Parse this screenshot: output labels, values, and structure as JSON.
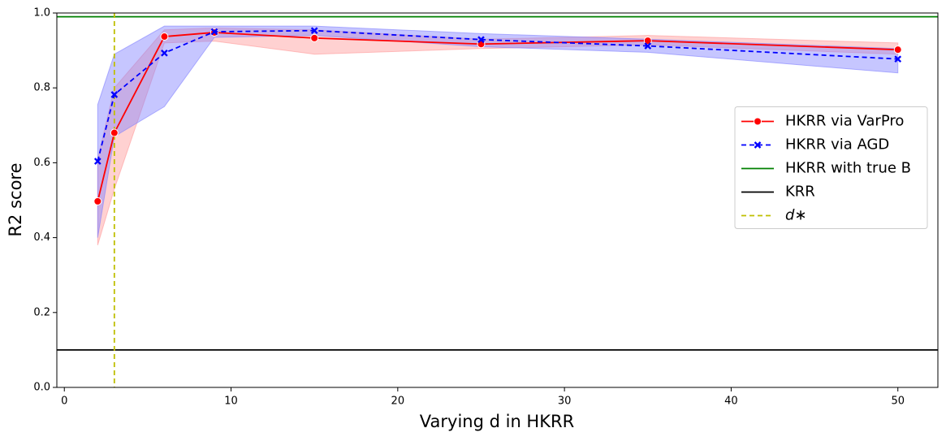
{
  "chart_data": {
    "type": "line",
    "x_label": "Varying d in HKRR",
    "y_label": "R2 score",
    "x": [
      2,
      3,
      6,
      9,
      15,
      25,
      35,
      50
    ],
    "series": [
      {
        "name": "HKRR via VarPro",
        "color": "#ff0000",
        "band_color": "#ff9999",
        "marker": "circle",
        "dash": false,
        "values": [
          0.497,
          0.68,
          0.937,
          0.948,
          0.933,
          0.917,
          0.926,
          0.902
        ],
        "lower": [
          0.38,
          0.53,
          0.92,
          0.925,
          0.89,
          0.905,
          0.915,
          0.89
        ],
        "upper": [
          0.61,
          0.8,
          0.955,
          0.96,
          0.955,
          0.93,
          0.94,
          0.92
        ]
      },
      {
        "name": "HKRR via AGD",
        "color": "#0000ff",
        "band_color": "#8080ff",
        "marker": "x",
        "dash": true,
        "values": [
          0.604,
          0.782,
          0.893,
          0.95,
          0.953,
          0.929,
          0.912,
          0.877
        ],
        "lower": [
          0.4,
          0.67,
          0.75,
          0.935,
          0.94,
          0.91,
          0.895,
          0.84
        ],
        "upper": [
          0.755,
          0.89,
          0.965,
          0.965,
          0.965,
          0.945,
          0.93,
          0.905
        ]
      }
    ],
    "hlines": [
      {
        "name": "HKRR with true B",
        "color": "#008000",
        "value": 0.99
      },
      {
        "name": "KRR",
        "color": "#000000",
        "value": 0.1
      }
    ],
    "vlines": [
      {
        "name": "d∗",
        "color": "#bfbf00",
        "value": 3,
        "dash": true
      }
    ],
    "xlim": [
      -0.45,
      52.4
    ],
    "ylim": [
      0,
      1
    ],
    "xticks": [
      0,
      10,
      20,
      30,
      40,
      50
    ],
    "yticks": [
      {
        "value": 0,
        "label": "0.0"
      },
      {
        "value": 0.2,
        "label": "0.2"
      },
      {
        "value": 0.4,
        "label": "0.4"
      },
      {
        "value": 0.6,
        "label": "0.6"
      },
      {
        "value": 0.8,
        "label": "0.8"
      },
      {
        "value": 1,
        "label": "1.0"
      }
    ],
    "grid": false,
    "legend": "center right"
  }
}
